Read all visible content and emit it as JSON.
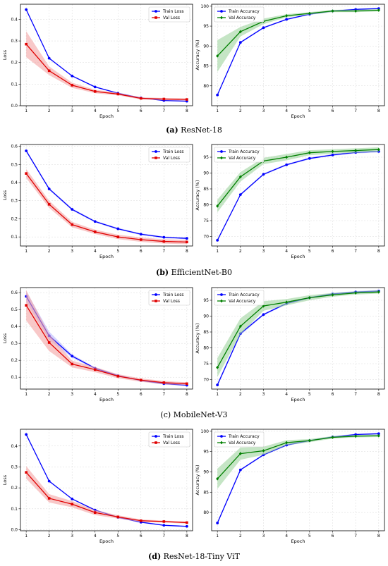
{
  "captions": [
    {
      "letter": "(a)",
      "label": "ResNet-18"
    },
    {
      "letter": "(b)",
      "label": "EfficientNet-B0"
    },
    {
      "letter": "(c)",
      "label": "MobileNet-V3"
    },
    {
      "letter": "(d)",
      "label": "ResNet-18-Tiny ViT"
    }
  ],
  "colors": {
    "train_loss": "#0000ff",
    "val_loss": "#e00000",
    "train_acc": "#0000ff",
    "val_acc": "#008000",
    "val_loss_band": "#f4a3a3",
    "val_acc_band": "#9ed49e",
    "train_band": "#a0a0ff"
  },
  "chart_data": [
    {
      "type": "line",
      "panel": "a-loss",
      "xlabel": "Epoch",
      "ylabel": "Loss",
      "x": [
        1,
        2,
        3,
        4,
        5,
        6,
        7,
        8
      ],
      "ylim": [
        0,
        0.47
      ],
      "yticks": [
        0.0,
        0.1,
        0.2,
        0.3,
        0.4
      ],
      "ytick_labels": [
        "0.0",
        "0.1",
        "0.2",
        "0.3",
        "0.4"
      ],
      "grid": true,
      "legend": "top-right",
      "series": [
        {
          "name": "Train Loss",
          "values": [
            0.445,
            0.22,
            0.138,
            0.087,
            0.058,
            0.036,
            0.024,
            0.021
          ],
          "band": [
            0.005,
            0.004,
            0.003,
            0.003,
            0.002,
            0.002,
            0.002,
            0.002
          ]
        },
        {
          "name": "Val Loss",
          "values": [
            0.285,
            0.162,
            0.095,
            0.066,
            0.054,
            0.034,
            0.031,
            0.029
          ],
          "band": [
            0.06,
            0.02,
            0.012,
            0.008,
            0.006,
            0.005,
            0.005,
            0.005
          ]
        }
      ]
    },
    {
      "type": "line",
      "panel": "a-acc",
      "xlabel": "Epoch",
      "ylabel": "Accuracy (%)",
      "x": [
        1,
        2,
        3,
        4,
        5,
        6,
        7,
        8
      ],
      "ylim": [
        75,
        100.5
      ],
      "yticks": [
        80,
        85,
        90,
        95,
        100
      ],
      "ytick_labels": [
        "80",
        "85",
        "90",
        "95",
        "100"
      ],
      "grid": true,
      "legend": "top-left",
      "series": [
        {
          "name": "Train Accuracy",
          "values": [
            77.7,
            90.9,
            94.6,
            96.7,
            98.0,
            98.8,
            99.2,
            99.4
          ],
          "band": [
            0.2,
            0.2,
            0.2,
            0.2,
            0.2,
            0.2,
            0.2,
            0.2
          ]
        },
        {
          "name": "Val Accuracy",
          "values": [
            87.5,
            93.6,
            96.2,
            97.6,
            98.2,
            98.8,
            98.8,
            99.0
          ],
          "band": [
            4.0,
            1.2,
            0.7,
            0.4,
            0.3,
            0.3,
            0.3,
            0.3
          ]
        }
      ]
    },
    {
      "type": "line",
      "panel": "b-loss",
      "xlabel": "Epoch",
      "ylabel": "Loss",
      "x": [
        1,
        2,
        3,
        4,
        5,
        6,
        7,
        8
      ],
      "ylim": [
        0.05,
        0.61
      ],
      "yticks": [
        0.1,
        0.2,
        0.3,
        0.4,
        0.5,
        0.6
      ],
      "ytick_labels": [
        "0.1",
        "0.2",
        "0.3",
        "0.4",
        "0.5",
        "0.6"
      ],
      "grid": true,
      "legend": "top-right",
      "series": [
        {
          "name": "Train Loss",
          "values": [
            0.575,
            0.365,
            0.252,
            0.185,
            0.145,
            0.115,
            0.098,
            0.092
          ],
          "band": [
            0.006,
            0.006,
            0.006,
            0.005,
            0.005,
            0.005,
            0.005,
            0.005
          ]
        },
        {
          "name": "Val Loss",
          "values": [
            0.45,
            0.28,
            0.168,
            0.128,
            0.1,
            0.085,
            0.075,
            0.072
          ],
          "band": [
            0.025,
            0.02,
            0.015,
            0.012,
            0.012,
            0.012,
            0.012,
            0.012
          ]
        }
      ]
    },
    {
      "type": "line",
      "panel": "b-acc",
      "xlabel": "Epoch",
      "ylabel": "Accuracy (%)",
      "x": [
        1,
        2,
        3,
        4,
        5,
        6,
        7,
        8
      ],
      "ylim": [
        67,
        99
      ],
      "yticks": [
        70,
        75,
        80,
        85,
        90,
        95
      ],
      "ytick_labels": [
        "70",
        "75",
        "80",
        "85",
        "90",
        "95"
      ],
      "grid": true,
      "legend": "top-left",
      "series": [
        {
          "name": "Train Accuracy",
          "values": [
            68.8,
            83.2,
            89.6,
            92.6,
            94.6,
            95.7,
            96.5,
            96.8
          ],
          "band": [
            0.3,
            0.3,
            0.3,
            0.3,
            0.3,
            0.3,
            0.3,
            0.3
          ]
        },
        {
          "name": "Val Accuracy",
          "values": [
            79.6,
            88.8,
            93.8,
            95.0,
            96.4,
            96.8,
            97.1,
            97.4
          ],
          "band": [
            2.0,
            1.5,
            1.0,
            1.0,
            0.8,
            0.7,
            0.7,
            0.7
          ]
        }
      ]
    },
    {
      "type": "line",
      "panel": "c-loss",
      "xlabel": "Epoch",
      "ylabel": "Loss",
      "x": [
        1,
        2,
        3,
        4,
        5,
        6,
        7,
        8
      ],
      "ylim": [
        0.03,
        0.63
      ],
      "yticks": [
        0.1,
        0.2,
        0.3,
        0.4,
        0.5,
        0.6
      ],
      "ytick_labels": [
        "0.1",
        "0.2",
        "0.3",
        "0.4",
        "0.5",
        "0.6"
      ],
      "grid": true,
      "legend": "top-right",
      "series": [
        {
          "name": "Train Loss",
          "values": [
            0.578,
            0.345,
            0.225,
            0.153,
            0.109,
            0.081,
            0.062,
            0.053
          ],
          "band": [
            0.03,
            0.025,
            0.01,
            0.005,
            0.005,
            0.005,
            0.005,
            0.005
          ]
        },
        {
          "name": "Val Loss",
          "values": [
            0.525,
            0.305,
            0.178,
            0.145,
            0.106,
            0.083,
            0.068,
            0.062
          ],
          "band": [
            0.09,
            0.05,
            0.02,
            0.015,
            0.012,
            0.01,
            0.01,
            0.008
          ]
        }
      ]
    },
    {
      "type": "line",
      "panel": "c-acc",
      "xlabel": "Epoch",
      "ylabel": "Accuracy (%)",
      "x": [
        1,
        2,
        3,
        4,
        5,
        6,
        7,
        8
      ],
      "ylim": [
        67,
        99
      ],
      "yticks": [
        70,
        75,
        80,
        85,
        90,
        95
      ],
      "ytick_labels": [
        "70",
        "75",
        "80",
        "85",
        "90",
        "95"
      ],
      "grid": true,
      "legend": "top-left",
      "series": [
        {
          "name": "Train Accuracy",
          "values": [
            68.3,
            84.5,
            90.5,
            94.0,
            95.8,
            97.0,
            97.6,
            97.9
          ],
          "band": [
            0.5,
            0.5,
            0.3,
            0.3,
            0.3,
            0.3,
            0.3,
            0.3
          ]
        },
        {
          "name": "Val Accuracy",
          "values": [
            73.8,
            86.8,
            93.2,
            94.4,
            95.8,
            96.7,
            97.3,
            97.6
          ],
          "band": [
            3.0,
            2.5,
            1.5,
            1.0,
            0.8,
            0.6,
            0.5,
            0.5
          ]
        }
      ]
    },
    {
      "type": "line",
      "panel": "d-loss",
      "xlabel": "Epoch",
      "ylabel": "Loss",
      "x": [
        1,
        2,
        3,
        4,
        5,
        6,
        7,
        8
      ],
      "ylim": [
        -0.005,
        0.48
      ],
      "yticks": [
        0.0,
        0.1,
        0.2,
        0.3,
        0.4
      ],
      "ytick_labels": [
        "0.0",
        "0.1",
        "0.2",
        "0.3",
        "0.4"
      ],
      "grid": true,
      "legend": "top-right",
      "series": [
        {
          "name": "Train Loss",
          "values": [
            0.455,
            0.232,
            0.147,
            0.094,
            0.059,
            0.036,
            0.021,
            0.016
          ],
          "band": [
            0.004,
            0.004,
            0.003,
            0.003,
            0.003,
            0.003,
            0.003,
            0.003
          ]
        },
        {
          "name": "Val Loss",
          "values": [
            0.274,
            0.15,
            0.122,
            0.082,
            0.061,
            0.043,
            0.039,
            0.034
          ],
          "band": [
            0.03,
            0.02,
            0.015,
            0.012,
            0.008,
            0.006,
            0.005,
            0.005
          ]
        }
      ]
    },
    {
      "type": "line",
      "panel": "d-acc",
      "xlabel": "Epoch",
      "ylabel": "Accuracy (%)",
      "x": [
        1,
        2,
        3,
        4,
        5,
        6,
        7,
        8
      ],
      "ylim": [
        75.5,
        100.5
      ],
      "yticks": [
        80,
        85,
        90,
        95,
        100
      ],
      "ytick_labels": [
        "80",
        "85",
        "90",
        "95",
        "100"
      ],
      "grid": true,
      "legend": "top-left",
      "series": [
        {
          "name": "Train Accuracy",
          "values": [
            77.4,
            90.5,
            94.2,
            96.6,
            97.7,
            98.6,
            99.2,
            99.4
          ],
          "band": [
            0.2,
            0.2,
            0.2,
            0.2,
            0.2,
            0.2,
            0.2,
            0.2
          ]
        },
        {
          "name": "Val Accuracy",
          "values": [
            88.3,
            94.5,
            95.2,
            97.2,
            97.7,
            98.5,
            98.8,
            98.9
          ],
          "band": [
            2.5,
            1.5,
            1.0,
            0.6,
            0.4,
            0.3,
            0.3,
            0.3
          ]
        }
      ]
    }
  ]
}
